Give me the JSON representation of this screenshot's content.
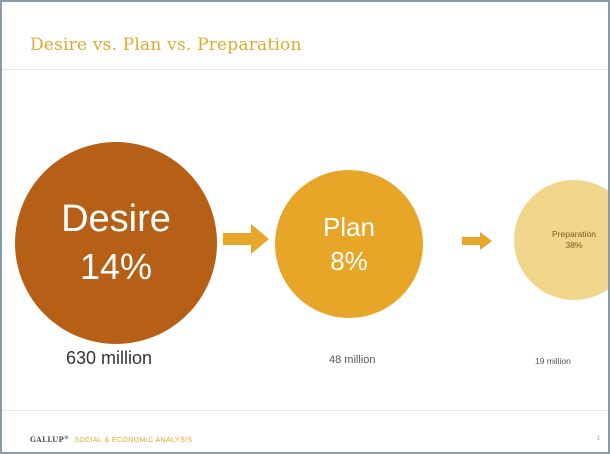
{
  "title": "Desire vs. Plan vs. Preparation",
  "stages": [
    {
      "label": "Desire",
      "percent": "14%",
      "count": "630 million",
      "color": "#b65f16"
    },
    {
      "label": "Plan",
      "percent": "8%",
      "count": "48 million",
      "color": "#e8a628"
    },
    {
      "label": "Preparation",
      "percent": "38%",
      "count": "19 million",
      "color": "#f0d58a"
    }
  ],
  "arrow_color": "#e8a628",
  "footer": {
    "brand": "GALLUP",
    "brand_mark": "®",
    "subtitle": "SOCIAL & ECONOMIC ANALYSIS",
    "page_number": "1"
  }
}
